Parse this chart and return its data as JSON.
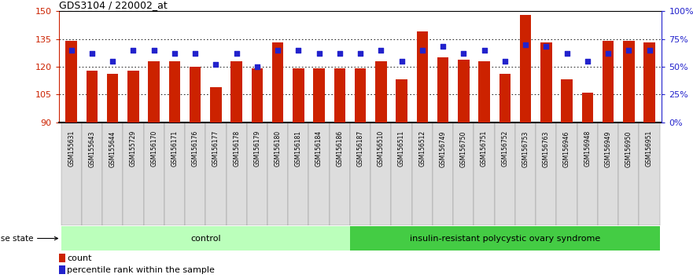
{
  "title": "GDS3104 / 220002_at",
  "samples": [
    "GSM155631",
    "GSM155643",
    "GSM155644",
    "GSM155729",
    "GSM156170",
    "GSM156171",
    "GSM156176",
    "GSM156177",
    "GSM156178",
    "GSM156179",
    "GSM156180",
    "GSM156181",
    "GSM156184",
    "GSM156186",
    "GSM156187",
    "GSM156510",
    "GSM156511",
    "GSM156512",
    "GSM156749",
    "GSM156750",
    "GSM156751",
    "GSM156752",
    "GSM156753",
    "GSM156763",
    "GSM156946",
    "GSM156948",
    "GSM156949",
    "GSM156950",
    "GSM156951"
  ],
  "counts": [
    134,
    118,
    116,
    118,
    123,
    123,
    120,
    109,
    123,
    119,
    133,
    119,
    119,
    119,
    119,
    123,
    113,
    139,
    125,
    124,
    123,
    116,
    148,
    133,
    113,
    106,
    134,
    134,
    133
  ],
  "percentiles": [
    65,
    62,
    55,
    65,
    65,
    62,
    62,
    52,
    62,
    50,
    65,
    65,
    62,
    62,
    62,
    65,
    55,
    65,
    68,
    62,
    65,
    55,
    70,
    68,
    62,
    55,
    62,
    65,
    65
  ],
  "control_count": 14,
  "ylim_left": [
    90,
    150
  ],
  "ylim_right": [
    0,
    100
  ],
  "yticks_left": [
    90,
    105,
    120,
    135,
    150
  ],
  "yticks_right": [
    0,
    25,
    50,
    75,
    100
  ],
  "ytick_labels_right": [
    "0%",
    "25%",
    "50%",
    "75%",
    "100%"
  ],
  "bar_color": "#cc2200",
  "dot_color": "#2222cc",
  "control_label": "control",
  "disease_label": "insulin-resistant polycystic ovary syndrome",
  "control_bg": "#bbffbb",
  "disease_bg": "#44cc44",
  "xlabel_color": "#cc2200",
  "right_axis_color": "#2222cc",
  "legend_count_label": "count",
  "legend_percentile_label": "percentile rank within the sample",
  "bar_width": 0.55,
  "dot_size": 22
}
